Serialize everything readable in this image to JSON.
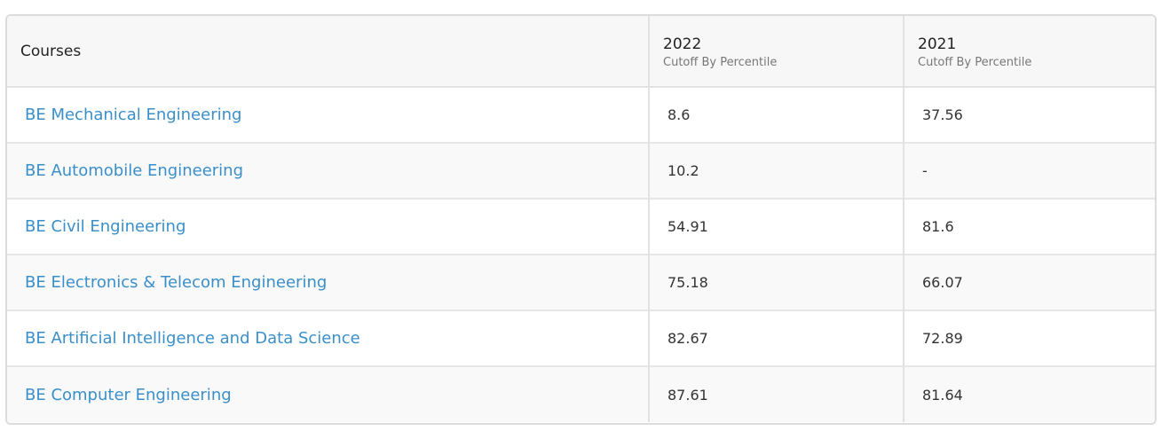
{
  "table": {
    "headers": {
      "courses": "Courses",
      "col_2022_year": "2022",
      "col_2022_sub": "Cutoff By Percentile",
      "col_2021_year": "2021",
      "col_2021_sub": "Cutoff By Percentile"
    },
    "rows": [
      {
        "course": "BE Mechanical Engineering",
        "y2022": "8.6",
        "y2021": "37.56"
      },
      {
        "course": "BE Automobile Engineering",
        "y2022": "10.2",
        "y2021": "-"
      },
      {
        "course": "BE Civil Engineering",
        "y2022": "54.91",
        "y2021": "81.6"
      },
      {
        "course": "BE Electronics & Telecom Engineering",
        "y2022": "75.18",
        "y2021": "66.07"
      },
      {
        "course": "BE Artificial Intelligence and Data Science",
        "y2022": "82.67",
        "y2021": "72.89"
      },
      {
        "course": "BE Computer Engineering",
        "y2022": "87.61",
        "y2021": "81.64"
      }
    ]
  },
  "colors": {
    "link": "#3a8fc9",
    "header_bg": "#f7f7f7",
    "border": "#e2e2e2"
  }
}
